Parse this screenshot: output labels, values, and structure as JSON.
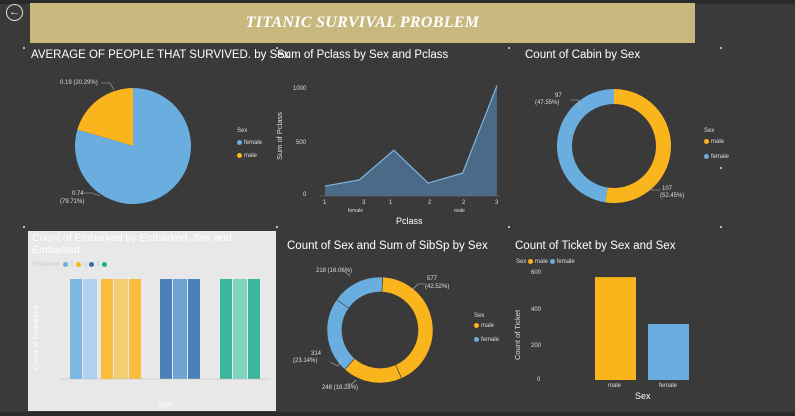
{
  "header": {
    "title": "TITANIC SURVIVAL PROBLEM",
    "back_icon": "back-arrow-icon"
  },
  "colors": {
    "female": "#6aaee0",
    "male": "#fbb51c",
    "area": "#4a6a88",
    "dark_blue": "#2f6fb0",
    "teal": "#1aae8e"
  },
  "pie": {
    "title": "AVERAGE OF PEOPLE THAT SURVIVED. by Sex",
    "legend_title": "Sex",
    "legend": [
      "female",
      "male"
    ],
    "label_male": "0.19 (20.29%)",
    "label_female_value": "0.74",
    "label_female_pct": "(79.71%)",
    "chart_data": {
      "type": "pie",
      "labels": [
        "female",
        "male"
      ],
      "values": [
        0.74,
        0.19
      ],
      "percents": [
        79.71,
        20.29
      ]
    }
  },
  "area": {
    "title": "Sum of Pclass by Sex and Pclass",
    "ylabel": "Sum of Pclass",
    "xlabel": "Pclass",
    "yticks": [
      "1000",
      "500",
      "0"
    ],
    "xticks": [
      "1",
      "2",
      "3",
      "1",
      "2",
      "3"
    ],
    "groups": [
      "female",
      "male"
    ],
    "chart_data": {
      "type": "area",
      "x": [
        "female 1",
        "female 2",
        "female 3",
        "male 1",
        "male 2",
        "male 3"
      ],
      "values": [
        94,
        152,
        432,
        122,
        216,
        1041
      ],
      "ylim": [
        0,
        1000
      ]
    }
  },
  "donut_cabin": {
    "title": "Count of Cabin by Sex",
    "legend_title": "Sex",
    "legend": [
      "male",
      "female"
    ],
    "label_female_value": "97",
    "label_female_pct": "(47.55%)",
    "label_male_value": "107",
    "label_male_pct": "(52.45%)",
    "chart_data": {
      "type": "pie",
      "labels": [
        "male",
        "female"
      ],
      "values": [
        107,
        97
      ],
      "percents": [
        52.45,
        47.55
      ]
    }
  },
  "embarked": {
    "title_line1": "Count of Embarked by Embarked, Sex and",
    "title_line2": "Embarked",
    "ylabel": "Count of Embarked",
    "xlabel": "Sex",
    "legend_title": "Embarked",
    "legend": [
      "C",
      "Q",
      "S"
    ],
    "chart_data": {
      "type": "bar",
      "note": "faded visual; values unreadable"
    }
  },
  "donut_sibsp": {
    "title": "Count of Sex and Sum of SibSp by Sex",
    "legend_title": "Sex",
    "legend": [
      "male",
      "female"
    ],
    "labels": [
      "218 (16.06%)",
      "577",
      "(42.52%)",
      "314",
      "(23.14%)",
      "248 (18.28%)"
    ],
    "chart_data": {
      "type": "pie",
      "labels": [
        "male",
        "female",
        "female",
        "male"
      ],
      "values": [
        577,
        218,
        314,
        248
      ],
      "percents": [
        42.52,
        16.06,
        23.14,
        18.28
      ]
    }
  },
  "ticket": {
    "title": "Count of Ticket by Sex and Sex",
    "legend_title": "Sex",
    "legend": [
      "male",
      "female"
    ],
    "ylabel": "Count of Ticket",
    "xlabel": "Sex",
    "yticks": [
      "600",
      "400",
      "200",
      "0"
    ],
    "categories": [
      "male",
      "female"
    ],
    "chart_data": {
      "type": "bar",
      "categories": [
        "male",
        "female"
      ],
      "values": [
        577,
        314
      ],
      "ylim": [
        0,
        600
      ]
    }
  }
}
